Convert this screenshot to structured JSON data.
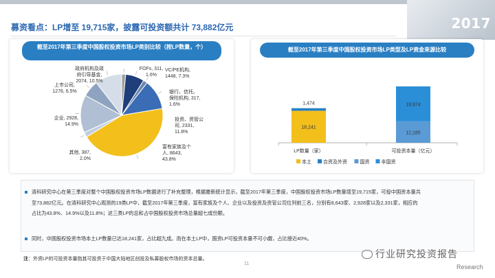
{
  "header": {
    "headline": "募资看点：LP增至 19,715家，披露可投资额共计 73,882亿元",
    "year": "2017"
  },
  "chart_data": [
    {
      "type": "pie",
      "title": "截至2017年第三季度中国股权投资市场LP类别比较（按LP数量，个）",
      "slices": [
        {
          "name": "FOFs",
          "label_lines": [
            "FOFs, 311,",
            "1.6%"
          ],
          "value": 311,
          "percent": 1.6,
          "color": "#9e9e9e"
        },
        {
          "name": "VC/PE机构",
          "label_lines": [
            "VC/PE机构,",
            "1448, 7.3%"
          ],
          "value": 1448,
          "percent": 7.3,
          "color": "#1f3f7a"
        },
        {
          "name": "银行、信托、保险机构",
          "label_lines": [
            "银行、信托、",
            "保险机构, 317,",
            "1.6%"
          ],
          "value": 317,
          "percent": 1.6,
          "color": "#6a86a9"
        },
        {
          "name": "投资、资管公司",
          "label_lines": [
            "投资、资管公",
            "司, 2331,",
            "11.8%"
          ],
          "value": 2331,
          "percent": 11.8,
          "color": "#3a6db5"
        },
        {
          "name": "富有家族及个人",
          "label_lines": [
            "富有家族及个",
            "人, 8643,",
            "43.8%"
          ],
          "value": 8643,
          "percent": 43.8,
          "color": "#f2bf1b"
        },
        {
          "name": "其他",
          "label_lines": [
            "其他, 387,",
            "2.0%"
          ],
          "value": 387,
          "percent": 2.0,
          "color": "#c0cde0"
        },
        {
          "name": "企业",
          "label_lines": [
            "企业, 2928,",
            "14.9%"
          ],
          "value": 2928,
          "percent": 14.9,
          "color": "#b0bfd3"
        },
        {
          "name": "上市公司",
          "label_lines": [
            "上市公司,",
            "1276, 6.5%"
          ],
          "value": 1276,
          "percent": 6.5,
          "color": "#8ea3bf"
        },
        {
          "name": "政府机构及政府引导基金",
          "label_lines": [
            "政府机构及政",
            "府引导基金,",
            "2074, 10.5%"
          ],
          "value": 2074,
          "percent": 10.5,
          "color": "#d5dde8"
        }
      ]
    },
    {
      "type": "bar",
      "stacked": true,
      "title": "截至2017年第三季度中国股权投资市场LP类型及LP资金来源比较",
      "categories": [
        "LP数量（家）",
        "可投资本量（亿元）"
      ],
      "series": [
        {
          "name": "本土",
          "color": "#f2bf1b",
          "values": [
            18241,
            null
          ]
        },
        {
          "name": "合资及外资",
          "color": "#2a7fc3",
          "values": [
            1474,
            null
          ]
        },
        {
          "name": "国资",
          "color": "#5b9bd5",
          "values": [
            null,
            12185
          ]
        },
        {
          "name": "非国资",
          "color": "#2b8fd8",
          "values": [
            null,
            19974
          ]
        }
      ],
      "bar_labels": [
        [
          "18,241",
          "1,474"
        ],
        [
          "12,185",
          "19,974"
        ]
      ],
      "legend_position": "bottom"
    }
  ],
  "text": {
    "p1_lines": [
      "清科研究中心在第三季度对整个中国股权投资市场LP数据进行了补充整理，根据最新统计显示，截至2017年第三季度，中国股权投资市场LP数量增至19,715家，可投中国资本量共",
      "至73,882亿元。在清科研究中心观测的19类LP中，截至2017年第三季度，富有家族及个人、企业以及投资及资管公司位列前三名，分别有8,643家、2,928家以及2,331家，相应的",
      "占比为43.8%、14.9%以及11.8%；这三类LP的总和占中国股权投资市场总量超七成份额。"
    ],
    "p2": "同时，中国股权投资市场本土LP数量已达18,241家，占比超九成。而在本土LP中，国资LP可投资本量不可小觑，占比接近40%。",
    "note_label": "注",
    "note_text": "：外资LP的可投资本量指其可投资于中国大陆地区创投及私募股权市场的资本总量。",
    "page_number": "11",
    "watermark": "行业研究投资报告",
    "watermark_sub": "Research"
  }
}
